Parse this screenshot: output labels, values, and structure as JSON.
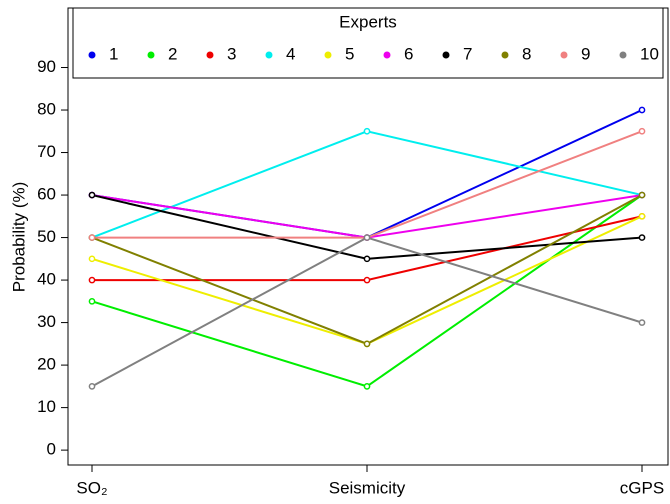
{
  "chart_data": {
    "type": "line",
    "categories": [
      "SO₂",
      "Seismicity",
      "cGPS"
    ],
    "y_label": "Probability (%)",
    "legend_title": "Experts",
    "legend_position": "top",
    "ylim": [
      -3.5,
      104
    ],
    "yticks": [
      0,
      10,
      20,
      30,
      40,
      50,
      60,
      70,
      80,
      90
    ],
    "series": [
      {
        "name": "1",
        "color": "#0000ee",
        "values": [
          60,
          50,
          80
        ]
      },
      {
        "name": "2",
        "color": "#00ee00",
        "values": [
          35,
          15,
          60
        ]
      },
      {
        "name": "3",
        "color": "#ee0000",
        "values": [
          40,
          40,
          55
        ]
      },
      {
        "name": "4",
        "color": "#00eeee",
        "values": [
          50,
          75,
          60
        ]
      },
      {
        "name": "5",
        "color": "#eeee00",
        "values": [
          45,
          25,
          55
        ]
      },
      {
        "name": "6",
        "color": "#ee00ee",
        "values": [
          60,
          50,
          60
        ]
      },
      {
        "name": "7",
        "color": "#000000",
        "values": [
          60,
          45,
          50
        ]
      },
      {
        "name": "8",
        "color": "#808000",
        "values": [
          50,
          25,
          60
        ]
      },
      {
        "name": "9",
        "color": "#f08080",
        "values": [
          50,
          50,
          75
        ]
      },
      {
        "name": "10",
        "color": "#808080",
        "values": [
          15,
          50,
          30
        ]
      }
    ]
  }
}
